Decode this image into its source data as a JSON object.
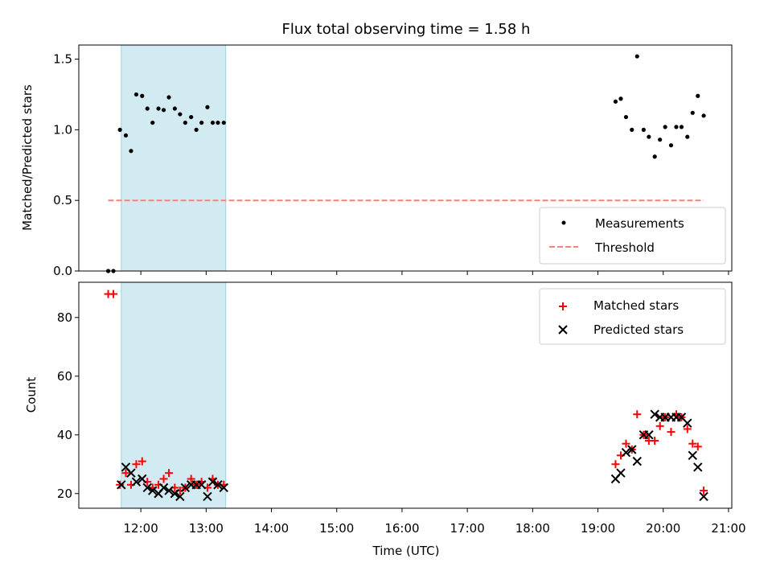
{
  "chart_data": [
    {
      "type": "scatter",
      "title": "Flux total observing time = 1.58 h",
      "xlabel": "",
      "ylabel": "Matched/Predicted stars",
      "xlim": [
        11.05,
        21.05
      ],
      "ylim": [
        0.0,
        1.6
      ],
      "yticks": [
        0.0,
        0.5,
        1.0,
        1.5
      ],
      "ytick_labels": [
        "0.0",
        "0.5",
        "1.0",
        "1.5"
      ],
      "legend_position": "lower-right",
      "shaded_span": [
        11.7,
        13.3
      ],
      "series": [
        {
          "name": "Measurements",
          "marker": "dot",
          "color": "#000000",
          "x": [
            11.5,
            11.58,
            11.68,
            11.77,
            11.85,
            11.93,
            12.02,
            12.1,
            12.18,
            12.27,
            12.35,
            12.43,
            12.52,
            12.6,
            12.68,
            12.77,
            12.85,
            12.93,
            13.02,
            13.1,
            13.18,
            13.27,
            19.27,
            19.35,
            19.43,
            19.52,
            19.6,
            19.7,
            19.78,
            19.87,
            19.95,
            20.03,
            20.12,
            20.2,
            20.28,
            20.37,
            20.45,
            20.53,
            20.62
          ],
          "y": [
            0.0,
            0.0,
            1.0,
            0.96,
            0.85,
            1.25,
            1.24,
            1.15,
            1.05,
            1.15,
            1.14,
            1.23,
            1.15,
            1.11,
            1.05,
            1.09,
            1.0,
            1.05,
            1.16,
            1.05,
            1.05,
            1.05,
            1.2,
            1.22,
            1.09,
            1.0,
            1.52,
            1.0,
            0.95,
            0.81,
            0.93,
            1.02,
            0.89,
            1.02,
            1.02,
            0.95,
            1.12,
            1.24,
            1.1
          ]
        },
        {
          "name": "Threshold",
          "marker": "dashed-line",
          "color": "#ff7f7f",
          "x": [
            11.5,
            20.62
          ],
          "y": [
            0.5,
            0.5
          ]
        }
      ]
    },
    {
      "type": "scatter",
      "title": "",
      "xlabel": "Time (UTC)",
      "ylabel": "Count",
      "xlim": [
        11.05,
        21.05
      ],
      "ylim": [
        15,
        92
      ],
      "yticks": [
        20,
        40,
        60,
        80
      ],
      "ytick_labels": [
        "20",
        "40",
        "60",
        "80"
      ],
      "xticks": [
        12,
        13,
        14,
        15,
        16,
        17,
        18,
        19,
        20,
        21
      ],
      "xtick_labels": [
        "12:00",
        "13:00",
        "14:00",
        "15:00",
        "16:00",
        "17:00",
        "18:00",
        "19:00",
        "20:00",
        "21:00"
      ],
      "legend_position": "upper-right",
      "shaded_span": [
        11.7,
        13.3
      ],
      "series": [
        {
          "name": "Matched stars",
          "marker": "plus",
          "color": "#ff0000",
          "x": [
            11.5,
            11.58,
            11.68,
            11.77,
            11.85,
            11.93,
            12.02,
            12.1,
            12.18,
            12.27,
            12.35,
            12.43,
            12.52,
            12.6,
            12.68,
            12.77,
            12.85,
            12.93,
            13.02,
            13.1,
            13.18,
            13.27,
            19.27,
            19.35,
            19.43,
            19.52,
            19.6,
            19.7,
            19.78,
            19.87,
            19.95,
            20.03,
            20.12,
            20.2,
            20.28,
            20.37,
            20.45,
            20.53,
            20.62
          ],
          "y": [
            88,
            88,
            23,
            27,
            23,
            30,
            31,
            24,
            22,
            23,
            25,
            27,
            22,
            21,
            22,
            25,
            23,
            24,
            22,
            25,
            23,
            23,
            30,
            33,
            37,
            35,
            47,
            40,
            38,
            38,
            43,
            46,
            41,
            47,
            46,
            42,
            37,
            36,
            21
          ]
        },
        {
          "name": "Predicted stars",
          "marker": "x",
          "color": "#000000",
          "x": [
            11.7,
            11.77,
            11.85,
            11.93,
            12.02,
            12.1,
            12.18,
            12.27,
            12.35,
            12.43,
            12.52,
            12.6,
            12.68,
            12.77,
            12.85,
            12.93,
            13.02,
            13.1,
            13.18,
            13.27,
            19.27,
            19.35,
            19.43,
            19.52,
            19.6,
            19.7,
            19.78,
            19.87,
            19.95,
            20.03,
            20.12,
            20.2,
            20.28,
            20.37,
            20.45,
            20.53,
            20.62
          ],
          "y": [
            23,
            29,
            27,
            24,
            25,
            22,
            21,
            20,
            22,
            21,
            20,
            19,
            22,
            23,
            23,
            23,
            19,
            24,
            23,
            22,
            25,
            27,
            34,
            35,
            31,
            40,
            40,
            47,
            46,
            46,
            46,
            46,
            46,
            44,
            33,
            29,
            19
          ]
        }
      ]
    }
  ],
  "colors": {
    "shade": "#add8e6",
    "matched": "#ff0000",
    "predicted": "#000000",
    "threshold": "#ff7f7f"
  }
}
